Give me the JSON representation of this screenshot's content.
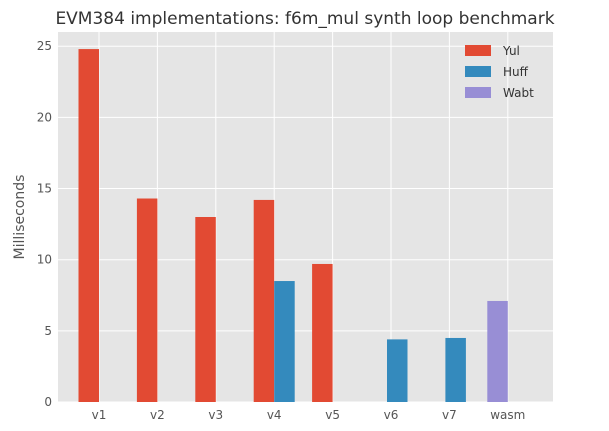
{
  "chart_data": {
    "type": "bar",
    "title": "EVM384 implementations: f6m_mul synth loop benchmark",
    "xlabel": "",
    "ylabel": "Milliseconds",
    "categories": [
      "v1",
      "v2",
      "v3",
      "v4",
      "v5",
      "v6",
      "v7",
      "wasm"
    ],
    "series": [
      {
        "name": "Yul",
        "color": "#E24A33",
        "values": [
          24.8,
          14.3,
          13.0,
          14.2,
          9.7,
          null,
          null,
          null
        ]
      },
      {
        "name": "Huff",
        "color": "#348ABD",
        "values": [
          null,
          null,
          null,
          8.5,
          null,
          4.4,
          4.5,
          null
        ]
      },
      {
        "name": "Wabt",
        "color": "#988ED5",
        "values": [
          null,
          null,
          null,
          null,
          null,
          null,
          null,
          7.1
        ]
      }
    ],
    "ylim": [
      0,
      26
    ],
    "yticks": [
      0,
      5,
      10,
      15,
      20,
      25
    ],
    "grid": true,
    "legend": "top-right",
    "background": "#E5E5E5"
  }
}
